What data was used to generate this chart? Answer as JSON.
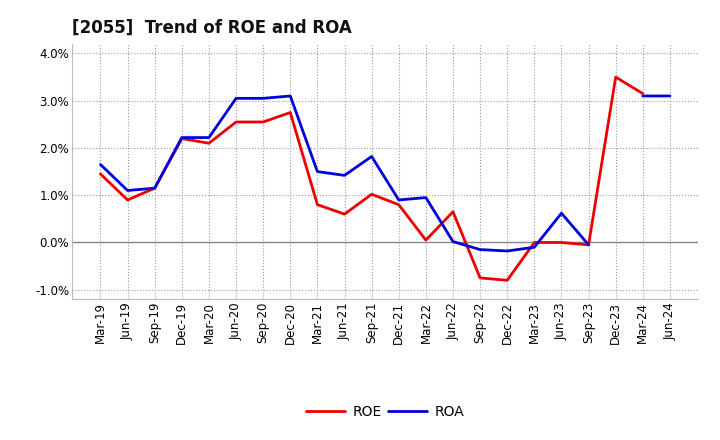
{
  "title": "[2055]  Trend of ROE and ROA",
  "categories": [
    "Mar-19",
    "Jun-19",
    "Sep-19",
    "Dec-19",
    "Mar-20",
    "Jun-20",
    "Sep-20",
    "Dec-20",
    "Mar-21",
    "Jun-21",
    "Sep-21",
    "Dec-21",
    "Mar-22",
    "Jun-22",
    "Sep-22",
    "Dec-22",
    "Mar-23",
    "Jun-23",
    "Sep-23",
    "Dec-23",
    "Mar-24",
    "Jun-24"
  ],
  "ROE": [
    1.45,
    0.9,
    1.15,
    2.2,
    2.1,
    2.55,
    2.55,
    2.75,
    0.8,
    0.6,
    1.02,
    0.8,
    0.05,
    0.65,
    -0.75,
    -0.8,
    0.0,
    0.0,
    -0.05,
    3.5,
    3.15,
    null
  ],
  "ROA": [
    1.65,
    1.1,
    1.15,
    2.22,
    2.22,
    3.05,
    3.05,
    3.1,
    1.5,
    1.42,
    1.82,
    0.9,
    0.95,
    0.02,
    -0.15,
    -0.18,
    -0.1,
    0.62,
    -0.05,
    null,
    3.1,
    3.1
  ],
  "roe_color": "#ee0000",
  "roa_color": "#0000dd",
  "ylim_min": -0.012,
  "ylim_max": 0.042,
  "yticks": [
    -0.01,
    0.0,
    0.01,
    0.02,
    0.03,
    0.04
  ],
  "background_color": "#ffffff",
  "grid_color": "#999999",
  "title_fontsize": 12,
  "axis_label_fontsize": 8.5,
  "legend_fontsize": 10
}
